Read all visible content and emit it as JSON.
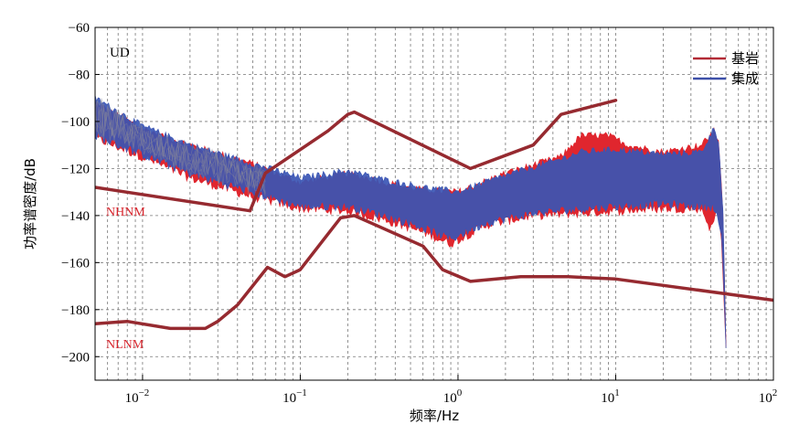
{
  "chart_data": {
    "type": "line",
    "panel_label": "UD",
    "xlabel": "频率/Hz",
    "ylabel": "功率谱密度/dB",
    "x_scale": "log",
    "xlim": [
      0.005,
      100
    ],
    "ylim": [
      -210,
      -60
    ],
    "grid": true,
    "legend_position": "top-right",
    "y_ticks": [
      -60,
      -80,
      -100,
      -120,
      -140,
      -160,
      -180,
      -200
    ],
    "x_ticks": [
      {
        "value": 0.01,
        "base": "10",
        "exp": "−2"
      },
      {
        "value": 0.1,
        "base": "10",
        "exp": "−1"
      },
      {
        "value": 1,
        "base": "10",
        "exp": "0"
      },
      {
        "value": 10,
        "base": "10",
        "exp": "1"
      },
      {
        "value": 100,
        "base": "10",
        "exp": "2"
      }
    ],
    "legend": [
      {
        "label": "基岩",
        "color": "#b22a35"
      },
      {
        "label": "集成",
        "color": "#3c4fa8"
      }
    ],
    "model_labels": {
      "nhnm": "NHNM",
      "nlnm": "NLNM"
    },
    "nhnm": {
      "color": "#962a30",
      "points": [
        [
          0.005,
          -128
        ],
        [
          0.048,
          -138
        ],
        [
          0.06,
          -122
        ],
        [
          0.15,
          -104
        ],
        [
          0.2,
          -97
        ],
        [
          0.22,
          -96
        ],
        [
          1.2,
          -120
        ],
        [
          3.0,
          -110
        ],
        [
          4.5,
          -97
        ],
        [
          10.0,
          -91
        ]
      ]
    },
    "nlnm": {
      "color": "#962a30",
      "points": [
        [
          0.005,
          -186
        ],
        [
          0.008,
          -185
        ],
        [
          0.015,
          -188
        ],
        [
          0.025,
          -188
        ],
        [
          0.03,
          -185
        ],
        [
          0.04,
          -178
        ],
        [
          0.062,
          -162
        ],
        [
          0.08,
          -166
        ],
        [
          0.1,
          -163
        ],
        [
          0.18,
          -141
        ],
        [
          0.22,
          -140
        ],
        [
          0.3,
          -144
        ],
        [
          0.6,
          -153
        ],
        [
          0.8,
          -163
        ],
        [
          1.2,
          -168
        ],
        [
          2.5,
          -166
        ],
        [
          5.0,
          -166
        ],
        [
          10.0,
          -167
        ],
        [
          100.0,
          -176
        ]
      ]
    },
    "series": [
      {
        "name": "基岩",
        "color": "#e0262e",
        "upper": [
          [
            0.005,
            -92
          ],
          [
            0.01,
            -103
          ],
          [
            0.02,
            -110
          ],
          [
            0.05,
            -118
          ],
          [
            0.1,
            -126
          ],
          [
            0.2,
            -122
          ],
          [
            0.35,
            -126
          ],
          [
            0.6,
            -129
          ],
          [
            1.0,
            -130
          ],
          [
            2.0,
            -122
          ],
          [
            4.5,
            -115
          ],
          [
            6.0,
            -106
          ],
          [
            9.0,
            -106
          ],
          [
            12.0,
            -110
          ],
          [
            20.0,
            -113
          ],
          [
            35.0,
            -110
          ],
          [
            42.0,
            -104
          ],
          [
            45.0,
            -108
          ],
          [
            48.0,
            -140
          ],
          [
            50.0,
            -195
          ]
        ],
        "lower": [
          [
            0.005,
            -107
          ],
          [
            0.01,
            -115
          ],
          [
            0.02,
            -124
          ],
          [
            0.05,
            -132
          ],
          [
            0.1,
            -137
          ],
          [
            0.2,
            -138
          ],
          [
            0.35,
            -142
          ],
          [
            0.6,
            -147
          ],
          [
            0.9,
            -152
          ],
          [
            1.5,
            -144
          ],
          [
            3.0,
            -140
          ],
          [
            6.0,
            -139
          ],
          [
            10.0,
            -138
          ],
          [
            20.0,
            -137
          ],
          [
            35.0,
            -137
          ],
          [
            40.0,
            -146
          ],
          [
            44.0,
            -138
          ],
          [
            47.0,
            -150
          ],
          [
            50.0,
            -197
          ]
        ]
      },
      {
        "name": "集成",
        "color": "#3a55b4",
        "upper": [
          [
            0.005,
            -90
          ],
          [
            0.01,
            -102
          ],
          [
            0.02,
            -110
          ],
          [
            0.05,
            -118
          ],
          [
            0.1,
            -124
          ],
          [
            0.2,
            -121
          ],
          [
            0.35,
            -125
          ],
          [
            0.6,
            -128
          ],
          [
            1.0,
            -130
          ],
          [
            2.0,
            -123
          ],
          [
            4.5,
            -116
          ],
          [
            6.0,
            -113
          ],
          [
            10.0,
            -112
          ],
          [
            20.0,
            -114
          ],
          [
            35.0,
            -113
          ],
          [
            42.0,
            -103
          ],
          [
            45.0,
            -108
          ],
          [
            48.0,
            -140
          ],
          [
            50.0,
            -195
          ]
        ],
        "lower": [
          [
            0.005,
            -106
          ],
          [
            0.01,
            -114
          ],
          [
            0.02,
            -122
          ],
          [
            0.05,
            -130
          ],
          [
            0.1,
            -136
          ],
          [
            0.2,
            -136
          ],
          [
            0.35,
            -140
          ],
          [
            0.6,
            -145
          ],
          [
            0.9,
            -150
          ],
          [
            1.5,
            -143
          ],
          [
            3.0,
            -139
          ],
          [
            6.0,
            -137
          ],
          [
            10.0,
            -136
          ],
          [
            20.0,
            -135
          ],
          [
            35.0,
            -136
          ],
          [
            42.0,
            -136
          ],
          [
            47.0,
            -148
          ],
          [
            50.0,
            -197
          ]
        ]
      }
    ]
  }
}
